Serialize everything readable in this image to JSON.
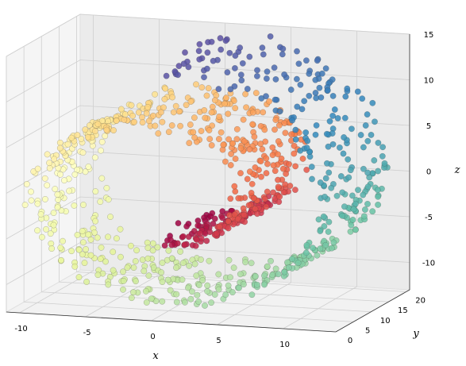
{
  "chart_data": {
    "type": "scatter",
    "projection": "3d",
    "dataset": "swiss-roll",
    "colormap": "Spectral",
    "grid": true,
    "xlabel": "x",
    "ylabel": "y",
    "zlabel": "z",
    "xlim": [
      -11,
      14
    ],
    "ylim": [
      0,
      21
    ],
    "zlim": [
      -13,
      15
    ],
    "x_ticks": [
      "-10",
      "-5",
      "0",
      "5",
      "10"
    ],
    "y_ticks": [
      "0",
      "5",
      "10",
      "15",
      "20"
    ],
    "z_ticks": [
      "-10",
      "-5",
      "0",
      "5",
      "10",
      "15"
    ],
    "parameter_range": [
      4.71,
      14.14
    ],
    "points": 1000
  }
}
